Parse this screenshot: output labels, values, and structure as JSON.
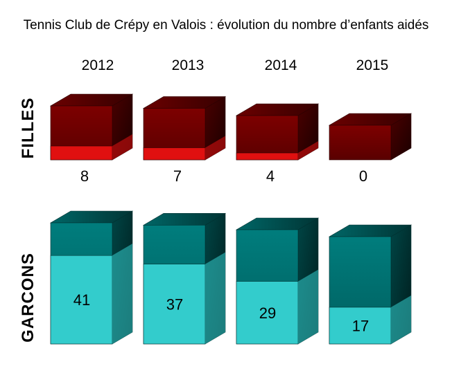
{
  "chart_data": {
    "type": "bar",
    "title": "Tennis Club de Crépy en Valois : évolution du nombre d’enfants aidés",
    "categories": [
      "2012",
      "2013",
      "2014",
      "2015"
    ],
    "series": [
      {
        "name": "FILLES",
        "values": [
          8,
          7,
          4,
          0
        ],
        "color": "#8b0000",
        "fill_color": "#e01010"
      },
      {
        "name": "GARCONS",
        "values": [
          41,
          37,
          29,
          17
        ],
        "color": "#007a7a",
        "fill_color": "#33cccc"
      }
    ]
  }
}
